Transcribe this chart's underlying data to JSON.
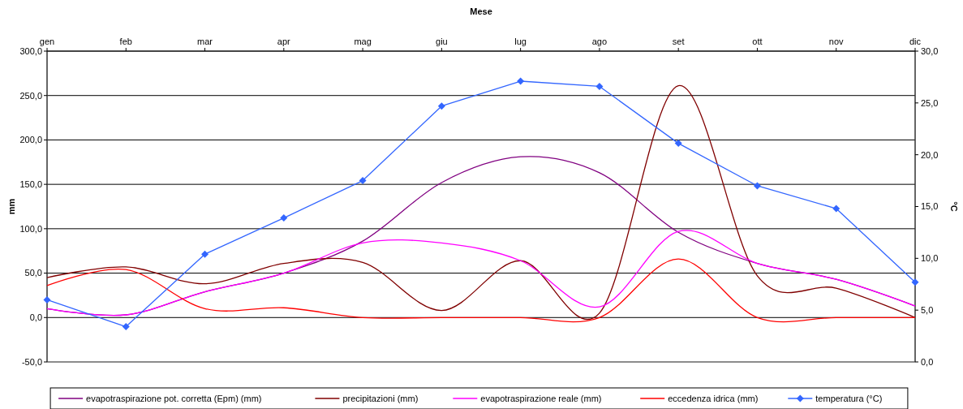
{
  "chart_data": {
    "type": "line",
    "xlabel": "Mese",
    "ylabel": "mm",
    "y2label": "°C",
    "categories": [
      "gen",
      "feb",
      "mar",
      "apr",
      "mag",
      "giu",
      "lug",
      "ago",
      "set",
      "ott",
      "nov",
      "dic"
    ],
    "series": [
      {
        "name": "evapotraspirazione pot. corretta (Epm) (mm)",
        "color": "#800080",
        "marker": "none",
        "values": [
          10,
          3,
          29,
          50,
          86,
          152,
          181,
          163,
          96,
          61,
          43,
          13
        ]
      },
      {
        "name": "precipitazioni (mm)",
        "color": "#800000",
        "marker": "none",
        "values": [
          45,
          57,
          38,
          61,
          62,
          8,
          64,
          5,
          261,
          47,
          33,
          0
        ]
      },
      {
        "name": "evapotraspirazione reale (mm)",
        "color": "#ff00ff",
        "marker": "none",
        "values": [
          10,
          3,
          29,
          50,
          84,
          84,
          64,
          12,
          97,
          61,
          43,
          13
        ]
      },
      {
        "name": "eccedenza idrica (mm)",
        "color": "#ff0000",
        "marker": "none",
        "values": [
          36,
          54,
          10,
          11,
          0,
          0,
          0,
          0,
          66,
          0,
          0,
          0
        ]
      },
      {
        "name": "temperatura (°C)",
        "color": "#3366ff",
        "marker": "diamond",
        "axis": "y2",
        "values": [
          6.0,
          3.4,
          10.4,
          13.9,
          17.5,
          24.7,
          27.1,
          26.6,
          21.1,
          17.0,
          14.8,
          7.7
        ]
      }
    ],
    "ylim": [
      -50,
      300
    ],
    "yticks": [
      {
        "value": -50,
        "label": "-50,0"
      },
      {
        "value": 0,
        "label": "0,0"
      },
      {
        "value": 50,
        "label": "50,0"
      },
      {
        "value": 100,
        "label": "100,0"
      },
      {
        "value": 150,
        "label": "150,0"
      },
      {
        "value": 200,
        "label": "200,0"
      },
      {
        "value": 250,
        "label": "250,0"
      },
      {
        "value": 300,
        "label": "300,0"
      }
    ],
    "y2lim": [
      0,
      30
    ],
    "y2ticks": [
      {
        "value": 0,
        "label": "0,0"
      },
      {
        "value": 5,
        "label": "5,0"
      },
      {
        "value": 10,
        "label": "10,0"
      },
      {
        "value": 15,
        "label": "15,0"
      },
      {
        "value": 20,
        "label": "20,0"
      },
      {
        "value": 25,
        "label": "25,0"
      },
      {
        "value": 30,
        "label": "30,0"
      }
    ],
    "grid": "y",
    "legend": "bottom"
  }
}
